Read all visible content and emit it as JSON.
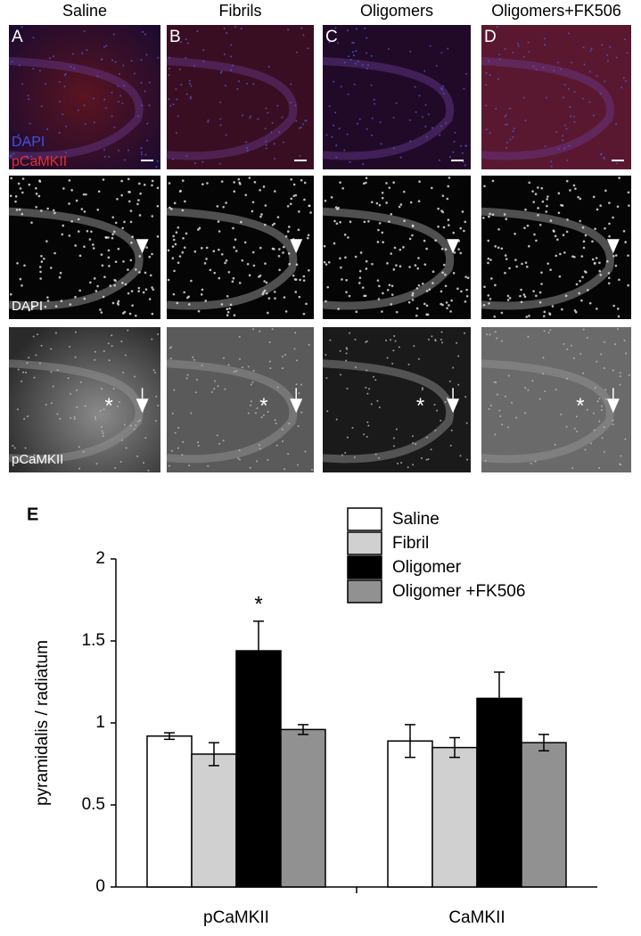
{
  "figure": {
    "columns": [
      {
        "header": "Saline",
        "letter": "A",
        "asterisk": "*"
      },
      {
        "header": "Fibrils",
        "letter": "B",
        "asterisk": "*"
      },
      {
        "header": "Oligomers",
        "letter": "C",
        "asterisk": "*"
      },
      {
        "header": "Oligomers+FK506",
        "letter": "D",
        "asterisk": "*"
      }
    ],
    "merge_labels": [
      "DAPI",
      "pCaMKII"
    ],
    "row_labels": [
      "DAPI",
      "pCaMKII"
    ]
  },
  "chart_data": {
    "type": "bar",
    "panel_label": "E",
    "y_label": "pyramidalis / radiatum",
    "categories": [
      "pCaMKII",
      "CaMKII"
    ],
    "series": [
      {
        "name": "Saline",
        "color": "#ffffff",
        "values": [
          0.92,
          0.89
        ],
        "errors": [
          0.02,
          0.1
        ]
      },
      {
        "name": "Fibril",
        "color": "#d0d0d0",
        "values": [
          0.81,
          0.85
        ],
        "errors": [
          0.07,
          0.06
        ]
      },
      {
        "name": "Oligomer",
        "color": "#000000",
        "values": [
          1.44,
          1.15
        ],
        "errors": [
          0.18,
          0.16
        ]
      },
      {
        "name": "Oligomer +FK506",
        "color": "#919191",
        "values": [
          0.96,
          0.88
        ],
        "errors": [
          0.03,
          0.05
        ]
      }
    ],
    "annotation": "*",
    "ylim": [
      0,
      2
    ],
    "yticks": [
      0,
      0.5,
      1,
      1.5,
      2
    ]
  }
}
